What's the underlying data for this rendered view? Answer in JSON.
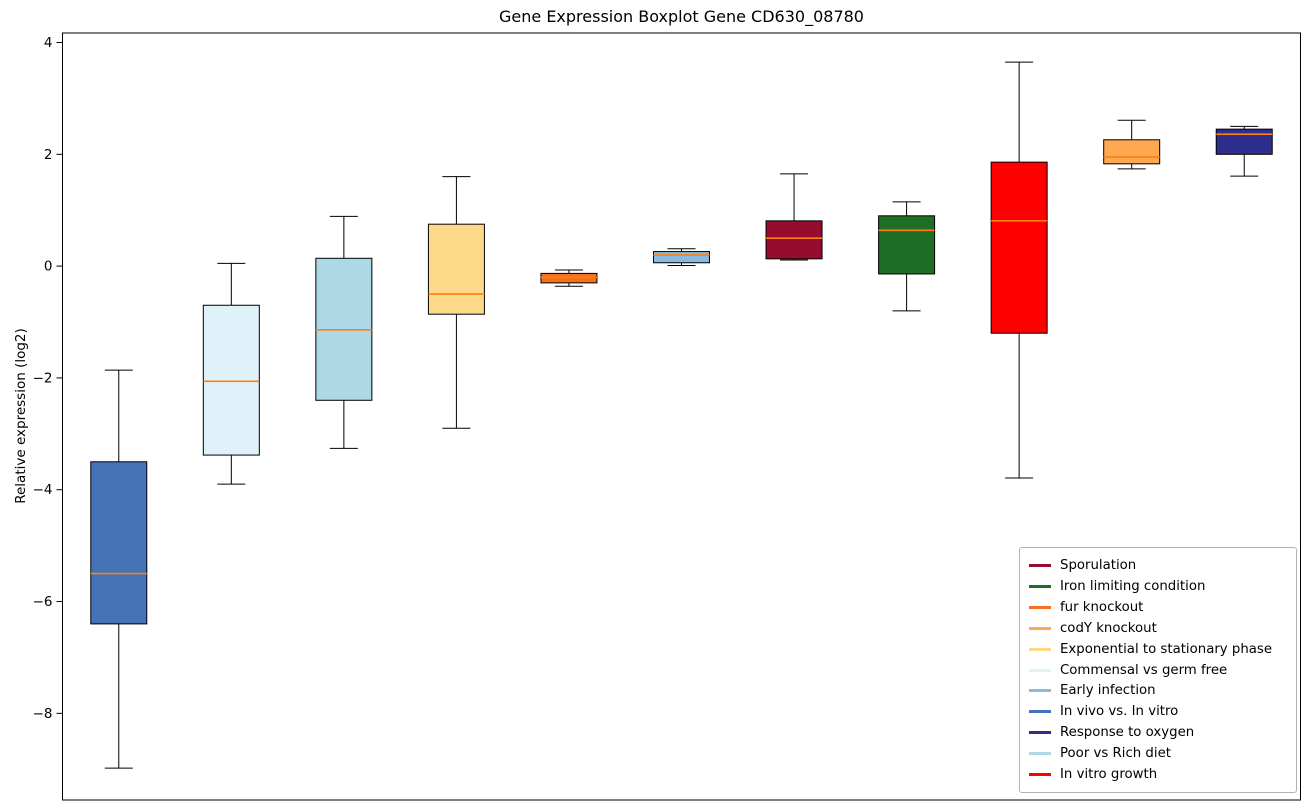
{
  "title": "Gene Expression Boxplot Gene CD630_08780",
  "ylabel": "Relative expression (log2)",
  "chart_data": {
    "type": "boxplot",
    "title": "Gene Expression Boxplot Gene CD630_08780",
    "ylabel": "Relative expression (log2)",
    "ylim": [
      -9.55,
      4.17
    ],
    "yticks": [
      4,
      2,
      0,
      -2,
      -4,
      -6,
      -8
    ],
    "grid": false,
    "median_color": "#ff7f0e",
    "box_edge_color": "#000000",
    "whisker_color": "#000000",
    "boxes": [
      {
        "label": "In vivo vs. In vitro",
        "color": "#4473b8",
        "whisker_low": -8.98,
        "q1": -6.4,
        "median": -5.5,
        "q3": -3.5,
        "whisker_high": -1.86
      },
      {
        "label": "Commensal vs germ free",
        "color": "#dff2f9",
        "whisker_low": -3.9,
        "q1": -3.38,
        "median": -2.06,
        "q3": -0.7,
        "whisker_high": 0.05
      },
      {
        "label": "Poor vs Rich diet",
        "color": "#add8e6",
        "whisker_low": -3.26,
        "q1": -2.4,
        "median": -1.14,
        "q3": 0.14,
        "whisker_high": 0.89
      },
      {
        "label": "Exponential to stationary phase",
        "color": "#ffd98a",
        "whisker_low": -2.9,
        "q1": -0.86,
        "median": -0.5,
        "q3": 0.75,
        "whisker_high": 1.6
      },
      {
        "label": "fur knockout",
        "color": "#f4701d",
        "whisker_low": -0.36,
        "q1": -0.3,
        "median": -0.2,
        "q3": -0.13,
        "whisker_high": -0.07
      },
      {
        "label": "Early infection",
        "color": "#89b9dc",
        "whisker_low": 0.01,
        "q1": 0.06,
        "median": 0.2,
        "q3": 0.26,
        "whisker_high": 0.31
      },
      {
        "label": "Sporulation",
        "color": "#960c2e",
        "whisker_low": 0.11,
        "q1": 0.13,
        "median": 0.5,
        "q3": 0.81,
        "whisker_high": 1.65
      },
      {
        "label": "Iron limiting condition",
        "color": "#1f6e26",
        "whisker_low": -0.8,
        "q1": -0.14,
        "median": 0.64,
        "q3": 0.9,
        "whisker_high": 1.15
      },
      {
        "label": "In vitro growth",
        "color": "#ff0000",
        "whisker_low": -3.79,
        "q1": -1.2,
        "median": 0.81,
        "q3": 1.86,
        "whisker_high": 3.65
      },
      {
        "label": "codY knockout",
        "color": "#ffa852",
        "whisker_low": 1.74,
        "q1": 1.83,
        "median": 1.95,
        "q3": 2.26,
        "whisker_high": 2.61
      },
      {
        "label": "Response to oxygen",
        "color": "#2e2e8c",
        "whisker_low": 1.61,
        "q1": 2.0,
        "median": 2.36,
        "q3": 2.45,
        "whisker_high": 2.5
      }
    ],
    "legend_position": "lower right",
    "legend": [
      {
        "label": "Sporulation",
        "color": "#960c2e"
      },
      {
        "label": "Iron limiting condition",
        "color": "#1f6e26"
      },
      {
        "label": "fur knockout",
        "color": "#f4701d"
      },
      {
        "label": "codY knockout",
        "color": "#ffa852"
      },
      {
        "label": "Exponential to stationary phase",
        "color": "#ffd98a"
      },
      {
        "label": "Commensal vs germ free",
        "color": "#dff2f9"
      },
      {
        "label": "Early infection",
        "color": "#89b9dc"
      },
      {
        "label": "In vivo vs. In vitro",
        "color": "#4473b8"
      },
      {
        "label": "Response to oxygen",
        "color": "#2e2e8c"
      },
      {
        "label": "Poor vs Rich diet",
        "color": "#add8e6"
      },
      {
        "label": "In vitro growth",
        "color": "#ff0000"
      }
    ]
  }
}
